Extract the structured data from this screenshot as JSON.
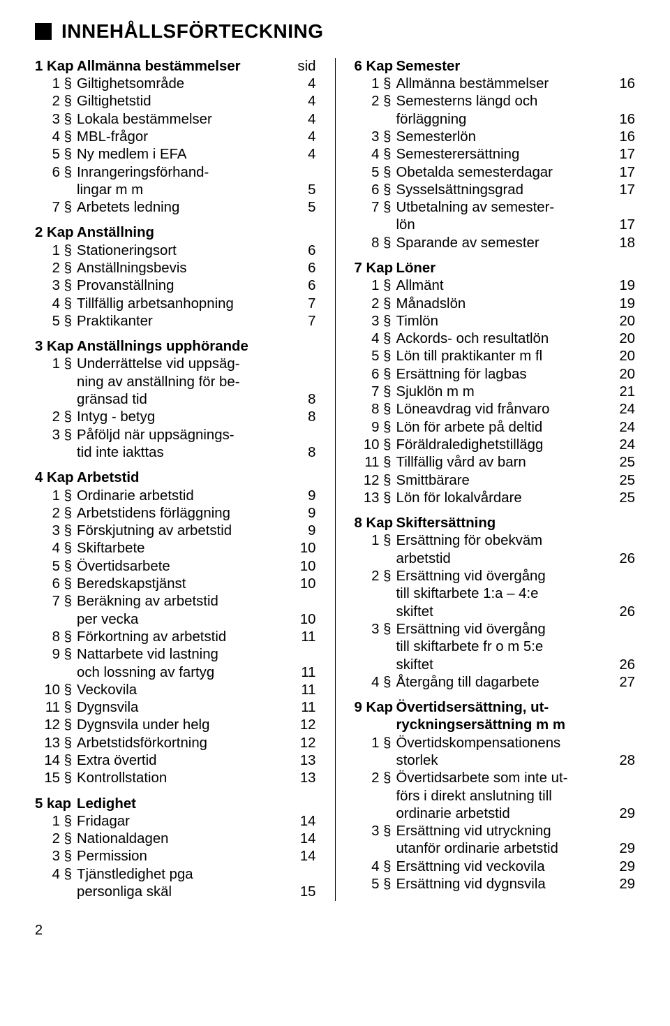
{
  "heading": "INNEHÅLLSFÖRTECKNING",
  "page_number": "2",
  "left": [
    {
      "num": "1 Kap",
      "title": "Allmänna bestämmelser",
      "after": "sid",
      "items": [
        {
          "n": "1 §",
          "t": "Giltighetsområde",
          "p": "4"
        },
        {
          "n": "2 §",
          "t": "Giltighetstid",
          "p": "4"
        },
        {
          "n": "3 §",
          "t": "Lokala bestämmelser",
          "p": "4"
        },
        {
          "n": "4 §",
          "t": "MBL-frågor",
          "p": "4"
        },
        {
          "n": "5 §",
          "t": "Ny medlem i EFA",
          "p": "4"
        },
        {
          "n": "6 §",
          "t": "Inrangeringsförhand-\nlingar m m",
          "p": "5"
        },
        {
          "n": "7 §",
          "t": "Arbetets ledning",
          "p": "5"
        }
      ]
    },
    {
      "num": "2 Kap",
      "title": "Anställning",
      "items": [
        {
          "n": "1 §",
          "t": "Stationeringsort",
          "p": "6"
        },
        {
          "n": "2 §",
          "t": "Anställningsbevis",
          "p": "6"
        },
        {
          "n": "3 §",
          "t": "Provanställning",
          "p": "6"
        },
        {
          "n": "4 §",
          "t": "Tillfällig arbetsanhopning",
          "p": "7"
        },
        {
          "n": "5 §",
          "t": "Praktikanter",
          "p": "7"
        }
      ]
    },
    {
      "num": "3 Kap",
      "title": "Anställnings upphörande",
      "items": [
        {
          "n": "1 §",
          "t": "Underrättelse vid uppsäg-\nning av anställning för be-\ngränsad tid",
          "p": "8"
        },
        {
          "n": "2 §",
          "t": "Intyg - betyg",
          "p": "8"
        },
        {
          "n": "3 §",
          "t": "Påföljd när uppsägnings-\ntid inte iakttas",
          "p": "8"
        }
      ]
    },
    {
      "num": "4 Kap",
      "title": "Arbetstid",
      "items": [
        {
          "n": "1 §",
          "t": "Ordinarie arbetstid",
          "p": "9"
        },
        {
          "n": "2 §",
          "t": "Arbetstidens förläggning",
          "p": "9"
        },
        {
          "n": "3 §",
          "t": "Förskjutning av arbetstid",
          "p": "9"
        },
        {
          "n": "4 §",
          "t": "Skiftarbete",
          "p": "10"
        },
        {
          "n": "5 §",
          "t": "Övertidsarbete",
          "p": "10"
        },
        {
          "n": "6 §",
          "t": "Beredskapstjänst",
          "p": "10"
        },
        {
          "n": "7 §",
          "t": "Beräkning av arbetstid\nper vecka",
          "p": "10"
        },
        {
          "n": "8 §",
          "t": "Förkortning av arbetstid",
          "p": "11"
        },
        {
          "n": "9 §",
          "t": "Nattarbete vid lastning\noch lossning av fartyg",
          "p": "11"
        },
        {
          "n": "10 §",
          "t": "Veckovila",
          "p": "11"
        },
        {
          "n": "11 §",
          "t": "Dygnsvila",
          "p": "11"
        },
        {
          "n": "12 §",
          "t": "Dygnsvila under helg",
          "p": "12"
        },
        {
          "n": "13 §",
          "t": "Arbetstidsförkortning",
          "p": "12"
        },
        {
          "n": "14 §",
          "t": "Extra övertid",
          "p": "13"
        },
        {
          "n": "15 §",
          "t": "Kontrollstation",
          "p": "13"
        }
      ]
    },
    {
      "num": "5 kap",
      "title": "Ledighet",
      "items": [
        {
          "n": "1 §",
          "t": "Fridagar",
          "p": "14"
        },
        {
          "n": "2 §",
          "t": "Nationaldagen",
          "p": "14"
        },
        {
          "n": "3 §",
          "t": "Permission",
          "p": "14"
        },
        {
          "n": "4 §",
          "t": "Tjänstledighet pga\npersonliga skäl",
          "p": "15"
        }
      ]
    }
  ],
  "right": [
    {
      "num": "6 Kap",
      "title": "Semester",
      "items": [
        {
          "n": "1 §",
          "t": "Allmänna bestämmelser",
          "p": "16"
        },
        {
          "n": "2 §",
          "t": "Semesterns längd och\nförläggning",
          "p": "16"
        },
        {
          "n": "3 §",
          "t": "Semesterlön",
          "p": "16"
        },
        {
          "n": "4 §",
          "t": "Semesterersättning",
          "p": "17"
        },
        {
          "n": "5 §",
          "t": "Obetalda semesterdagar",
          "p": "17"
        },
        {
          "n": "6 §",
          "t": "Sysselsättningsgrad",
          "p": "17"
        },
        {
          "n": "7 §",
          "t": "Utbetalning av semester-\nlön",
          "p": "17"
        },
        {
          "n": "8 §",
          "t": "Sparande av semester",
          "p": "18"
        }
      ]
    },
    {
      "num": "7 Kap",
      "title": "Löner",
      "items": [
        {
          "n": "1 §",
          "t": "Allmänt",
          "p": "19"
        },
        {
          "n": "2 §",
          "t": "Månadslön",
          "p": "19"
        },
        {
          "n": "3 §",
          "t": "Timlön",
          "p": "20"
        },
        {
          "n": "4 §",
          "t": "Ackords- och resultatlön",
          "p": "20"
        },
        {
          "n": "5 §",
          "t": "Lön till praktikanter m fl",
          "p": "20"
        },
        {
          "n": "6 §",
          "t": "Ersättning för lagbas",
          "p": "20"
        },
        {
          "n": "7 §",
          "t": "Sjuklön m m",
          "p": "21"
        },
        {
          "n": "8 §",
          "t": "Löneavdrag vid frånvaro",
          "p": "24"
        },
        {
          "n": "9 §",
          "t": "Lön för arbete på deltid",
          "p": "24"
        },
        {
          "n": "10 §",
          "t": "Föräldraledighetstillägg",
          "p": "24"
        },
        {
          "n": "11 §",
          "t": "Tillfällig vård av barn",
          "p": "25"
        },
        {
          "n": "12 §",
          "t": "Smittbärare",
          "p": "25"
        },
        {
          "n": "13 §",
          "t": "Lön för lokalvårdare",
          "p": "25"
        }
      ]
    },
    {
      "num": "8 Kap",
      "title": "Skiftersättning",
      "items": [
        {
          "n": "1 §",
          "t": "Ersättning för obekväm\narbetstid",
          "p": "26"
        },
        {
          "n": "2 §",
          "t": "Ersättning vid övergång\ntill skiftarbete 1:a – 4:e\nskiftet",
          "p": "26"
        },
        {
          "n": "3 §",
          "t": "Ersättning vid övergång\ntill skiftarbete fr o m 5:e\nskiftet",
          "p": "26"
        },
        {
          "n": "4 §",
          "t": "Återgång till dagarbete",
          "p": "27"
        }
      ]
    },
    {
      "num": "9 Kap",
      "title": "Övertidsersättning, ut-\nryckningsersättning m m",
      "items": [
        {
          "n": "1 §",
          "t": "Övertidskompensationens\nstorlek",
          "p": "28"
        },
        {
          "n": "2 §",
          "t": "Övertidsarbete som inte ut-\nförs i direkt anslutning till\nordinarie arbetstid",
          "p": "29"
        },
        {
          "n": "3 §",
          "t": "Ersättning vid utryckning\nutanför ordinarie arbetstid",
          "p": "29"
        },
        {
          "n": "4 §",
          "t": "Ersättning vid veckovila",
          "p": "29"
        },
        {
          "n": "5 §",
          "t": "Ersättning vid dygnsvila",
          "p": "29"
        }
      ]
    }
  ]
}
